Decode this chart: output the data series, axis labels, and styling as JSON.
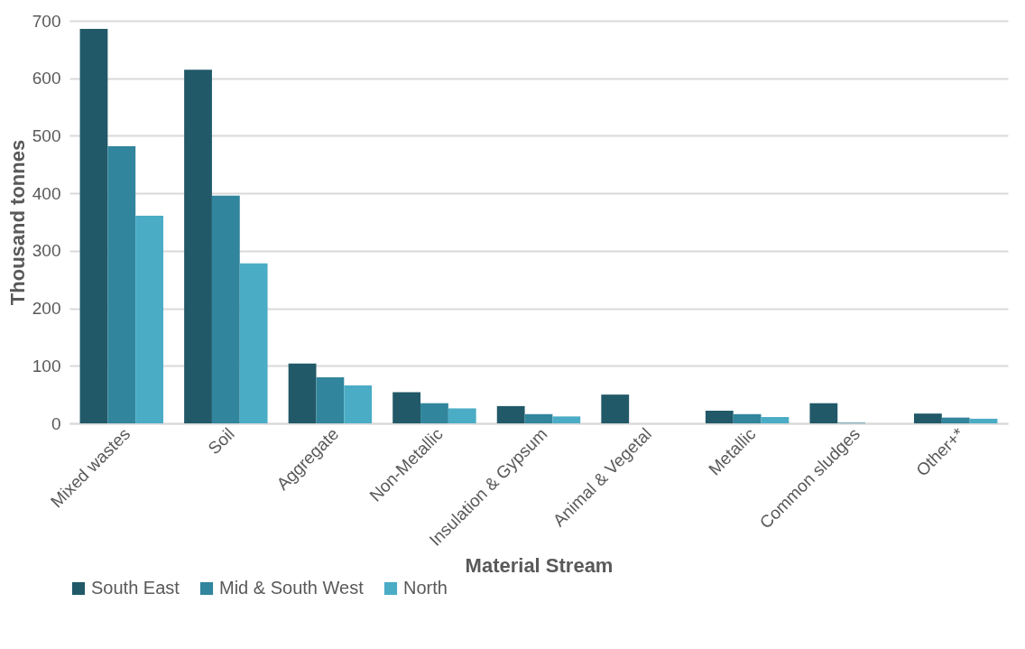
{
  "chart_data": {
    "type": "bar",
    "xlabel": "Material Stream",
    "ylabel": "Thousand tonnes",
    "categories": [
      "Mixed wastes",
      "Soil",
      "Aggregate",
      "Non-Metallic",
      "Insulation & Gypsum",
      "Animal & Vegetal",
      "Metallic",
      "Common sludges",
      "Other+*"
    ],
    "series": [
      {
        "name": "South East",
        "color": "#215968",
        "values": [
          686,
          615,
          104,
          54,
          30,
          50,
          22,
          35,
          17
        ]
      },
      {
        "name": "Mid & South West",
        "color": "#31859c",
        "values": [
          482,
          396,
          80,
          35,
          16,
          0,
          16,
          1,
          10
        ]
      },
      {
        "name": "North",
        "color": "#4bacc6",
        "values": [
          361,
          278,
          66,
          26,
          12,
          0,
          11,
          0,
          8
        ]
      }
    ],
    "ylim": [
      0,
      700
    ],
    "yticks": [
      0,
      100,
      200,
      300,
      400,
      500,
      600,
      700
    ],
    "grid": "y",
    "legend": "bottom"
  }
}
